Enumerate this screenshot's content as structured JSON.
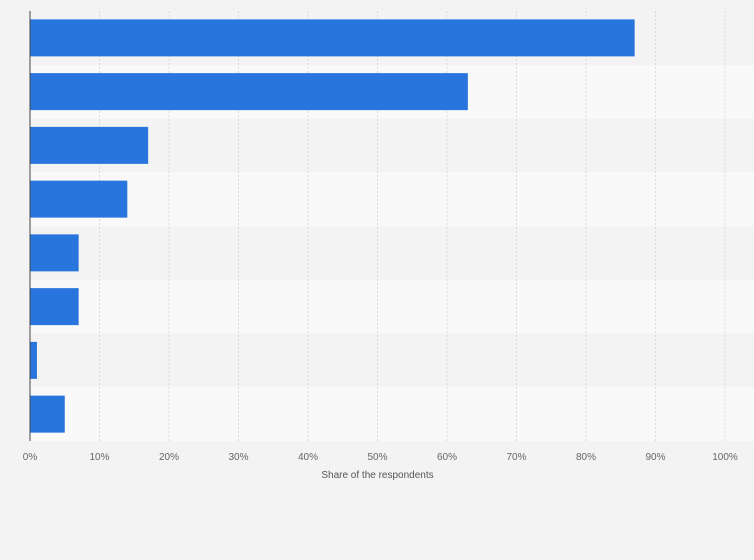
{
  "chart_data": {
    "type": "bar",
    "orientation": "horizontal",
    "categories": [
      "",
      "",
      "",
      "",
      "",
      "",
      "",
      ""
    ],
    "values": [
      87,
      63,
      17,
      14,
      7,
      7,
      1,
      5
    ],
    "xlabel": "Share of the respondents",
    "ylabel": "",
    "xlim": [
      0,
      100
    ],
    "x_ticks": [
      "0%",
      "10%",
      "20%",
      "30%",
      "40%",
      "50%",
      "60%",
      "70%",
      "80%",
      "90%",
      "100%"
    ],
    "grid": true,
    "legend": "none",
    "colors": {
      "bar": "#2876dd",
      "band_dark": "#f3f3f3",
      "band_light": "#f9f9f9",
      "gridline": "#d9d9d9",
      "axis": "#444444",
      "background": "#f3f3f3"
    }
  }
}
